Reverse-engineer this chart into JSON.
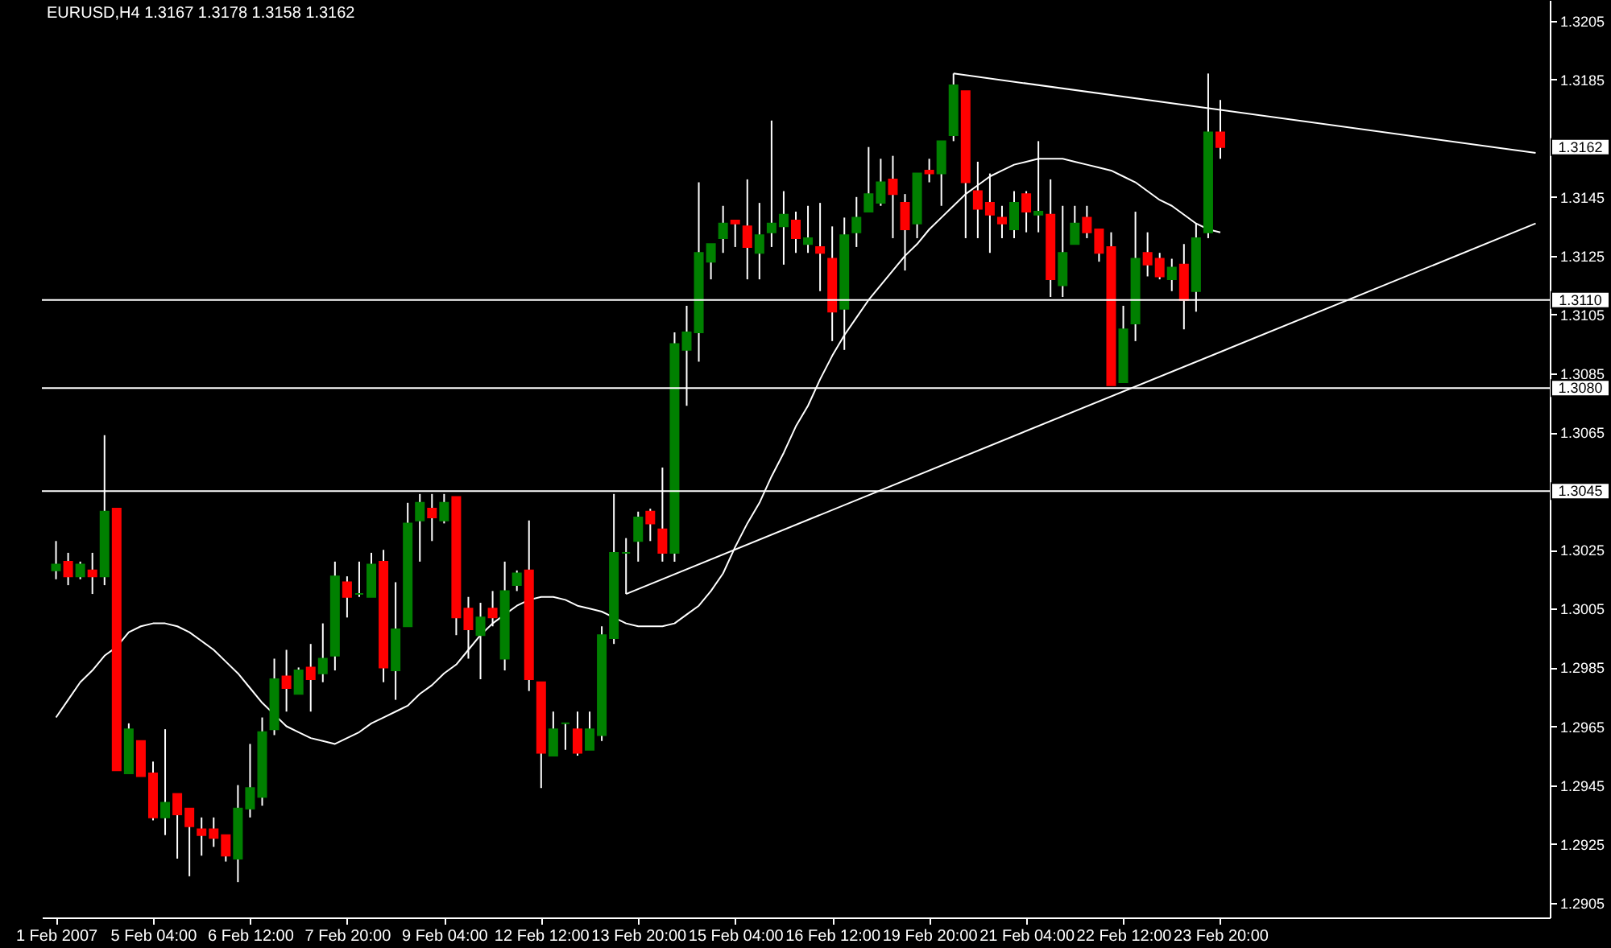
{
  "chart_data": {
    "type": "candlestick",
    "title": "EURUSD,H4 1.3167 1.3178 1.3158 1.3162",
    "categories": [
      "1 Feb 2007",
      null,
      null,
      null,
      null,
      null,
      null,
      null,
      "5 Feb 04:00",
      null,
      null,
      null,
      null,
      null,
      null,
      null,
      "6 Feb 12:00",
      null,
      null,
      null,
      null,
      null,
      null,
      null,
      "7 Feb 20:00",
      null,
      null,
      null,
      null,
      null,
      null,
      null,
      "9 Feb 04:00",
      null,
      null,
      null,
      null,
      null,
      null,
      null,
      "12 Feb 12:00",
      null,
      null,
      null,
      null,
      null,
      null,
      null,
      "13 Feb 20:00",
      null,
      null,
      null,
      null,
      null,
      null,
      null,
      "15 Feb 04:00",
      null,
      null,
      null,
      null,
      null,
      null,
      null,
      "16 Feb 12:00",
      null,
      null,
      null,
      null,
      null,
      null,
      null,
      "19 Feb 20:00",
      null,
      null,
      null,
      null,
      null,
      null,
      null,
      "21 Feb 04:00",
      null,
      null,
      null,
      null,
      null,
      null,
      null,
      "22 Feb 12:00",
      null,
      null,
      null,
      null,
      null,
      null,
      null,
      "23 Feb 20:00",
      null,
      null,
      null,
      null,
      null,
      null,
      null,
      null,
      null,
      null,
      null,
      null,
      null,
      null,
      null,
      null,
      null,
      null,
      null,
      null,
      null,
      null,
      null,
      null,
      null,
      null
    ],
    "ohlc": [
      [
        1.3018,
        1.3028,
        1.3015,
        1.302
      ],
      [
        1.3021,
        1.3024,
        1.3013,
        1.3016
      ],
      [
        1.3016,
        1.3021,
        1.3015,
        1.302
      ],
      [
        1.3018,
        1.3024,
        1.301,
        1.3016
      ],
      [
        1.3016,
        1.3064,
        1.3013,
        1.3038
      ],
      [
        1.3039,
        1.3039,
        1.295,
        1.295
      ],
      [
        1.2949,
        1.2966,
        1.2949,
        1.2964
      ],
      [
        1.296,
        1.296,
        1.2948,
        1.2948
      ],
      [
        1.2949,
        1.2953,
        1.2933,
        1.2934
      ],
      [
        1.2934,
        1.2964,
        1.2928,
        1.2939
      ],
      [
        1.2942,
        1.2942,
        1.292,
        1.2935
      ],
      [
        1.2937,
        1.2937,
        1.2914,
        1.2931
      ],
      [
        1.293,
        1.2934,
        1.2921,
        1.2928
      ],
      [
        1.293,
        1.2934,
        1.2924,
        1.2927
      ],
      [
        1.2928,
        1.2928,
        1.2919,
        1.2921
      ],
      [
        1.292,
        1.2945,
        1.2912,
        1.2937
      ],
      [
        1.2937,
        1.2959,
        1.2934,
        1.2944
      ],
      [
        1.2941,
        1.2968,
        1.2938,
        1.2963
      ],
      [
        1.2964,
        1.2988,
        1.2962,
        1.2981
      ],
      [
        1.2982,
        1.2991,
        1.297,
        1.2978
      ],
      [
        1.2976,
        1.2985,
        1.2976,
        1.2984
      ],
      [
        1.2985,
        1.2993,
        1.297,
        1.2981
      ],
      [
        1.2983,
        1.3,
        1.298,
        1.2988
      ],
      [
        1.2989,
        1.3021,
        1.2984,
        1.3016
      ],
      [
        1.3014,
        1.3016,
        1.3002,
        1.3009
      ],
      [
        1.301,
        1.3021,
        1.3009,
        1.301
      ],
      [
        1.3009,
        1.3024,
        1.3009,
        1.302
      ],
      [
        1.3021,
        1.3025,
        1.298,
        1.2985
      ],
      [
        1.2984,
        1.3014,
        1.2974,
        1.2998
      ],
      [
        1.2999,
        1.3041,
        1.2999,
        1.3034
      ],
      [
        1.3035,
        1.3044,
        1.3021,
        1.3041
      ],
      [
        1.3039,
        1.3044,
        1.3028,
        1.3036
      ],
      [
        1.3035,
        1.3044,
        1.3034,
        1.3041
      ],
      [
        1.3043,
        1.3043,
        1.2996,
        1.3002
      ],
      [
        1.3005,
        1.3009,
        1.2988,
        1.2998
      ],
      [
        1.2996,
        1.3007,
        1.2981,
        1.3002
      ],
      [
        1.3005,
        1.3011,
        1.2999,
        1.3002
      ],
      [
        1.2988,
        1.3021,
        1.2984,
        1.3011
      ],
      [
        1.3013,
        1.3018,
        1.3011,
        1.3017
      ],
      [
        1.3018,
        1.3035,
        1.2977,
        1.2981
      ],
      [
        1.298,
        1.298,
        1.2944,
        1.2956
      ],
      [
        1.2955,
        1.297,
        1.2955,
        1.2964
      ],
      [
        1.2966,
        1.2966,
        1.2957,
        1.2966
      ],
      [
        1.2964,
        1.297,
        1.2955,
        1.2956
      ],
      [
        1.2957,
        1.297,
        1.2957,
        1.2964
      ],
      [
        1.2962,
        1.2999,
        1.296,
        1.2996
      ],
      [
        1.2995,
        1.3044,
        1.2993,
        1.3024
      ],
      [
        1.3024,
        1.3029,
        1.301,
        1.3024
      ],
      [
        1.3028,
        1.3038,
        1.3021,
        1.3036
      ],
      [
        1.3038,
        1.3039,
        1.3028,
        1.3034
      ],
      [
        1.3032,
        1.3053,
        1.3021,
        1.3024
      ],
      [
        1.3024,
        1.3099,
        1.3021,
        1.3095
      ],
      [
        1.3093,
        1.3108,
        1.3074,
        1.3099
      ],
      [
        1.3099,
        1.315,
        1.3089,
        1.3126
      ],
      [
        1.3123,
        1.3129,
        1.3117,
        1.3129
      ],
      [
        1.3131,
        1.3142,
        1.3126,
        1.3136
      ],
      [
        1.3137,
        1.3137,
        1.3128,
        1.3136
      ],
      [
        1.3135,
        1.3151,
        1.3117,
        1.3128
      ],
      [
        1.3126,
        1.3143,
        1.3117,
        1.3132
      ],
      [
        1.3133,
        1.3171,
        1.3128,
        1.3136
      ],
      [
        1.3135,
        1.3147,
        1.3122,
        1.3139
      ],
      [
        1.3137,
        1.314,
        1.3126,
        1.3131
      ],
      [
        1.3129,
        1.3142,
        1.3126,
        1.3131
      ],
      [
        1.3128,
        1.3143,
        1.3113,
        1.3126
      ],
      [
        1.3124,
        1.3135,
        1.3096,
        1.3106
      ],
      [
        1.3107,
        1.3138,
        1.3093,
        1.3132
      ],
      [
        1.3133,
        1.3145,
        1.3128,
        1.3138
      ],
      [
        1.314,
        1.3162,
        1.314,
        1.3146
      ],
      [
        1.3143,
        1.3158,
        1.3142,
        1.315
      ],
      [
        1.3151,
        1.3159,
        1.3131,
        1.3146
      ],
      [
        1.3143,
        1.3146,
        1.312,
        1.3134
      ],
      [
        1.3136,
        1.3153,
        1.3131,
        1.3153
      ],
      [
        1.3154,
        1.3158,
        1.315,
        1.3153
      ],
      [
        1.3153,
        1.3164,
        1.3142,
        1.3164
      ],
      [
        1.3166,
        1.3187,
        1.3164,
        1.3183
      ],
      [
        1.3181,
        1.3181,
        1.3131,
        1.315
      ],
      [
        1.3147,
        1.3157,
        1.3131,
        1.3141
      ],
      [
        1.3143,
        1.3153,
        1.3126,
        1.3139
      ],
      [
        1.3138,
        1.3142,
        1.3131,
        1.3136
      ],
      [
        1.3134,
        1.3147,
        1.3131,
        1.3143
      ],
      [
        1.3146,
        1.3147,
        1.3133,
        1.314
      ],
      [
        1.3139,
        1.3164,
        1.3133,
        1.314
      ],
      [
        1.3139,
        1.3151,
        1.3111,
        1.3117
      ],
      [
        1.3115,
        1.3142,
        1.3111,
        1.3126
      ],
      [
        1.3129,
        1.3142,
        1.3129,
        1.3136
      ],
      [
        1.3138,
        1.3142,
        1.3131,
        1.3133
      ],
      [
        1.3134,
        1.3134,
        1.3123,
        1.3126
      ],
      [
        1.3128,
        1.3133,
        1.3081,
        1.3081
      ],
      [
        1.3082,
        1.3108,
        1.3082,
        1.31
      ],
      [
        1.3102,
        1.314,
        1.3096,
        1.3124
      ],
      [
        1.3126,
        1.3133,
        1.3118,
        1.3122
      ],
      [
        1.3124,
        1.3126,
        1.3117,
        1.3118
      ],
      [
        1.3117,
        1.3124,
        1.3113,
        1.3121
      ],
      [
        1.3122,
        1.3129,
        1.31,
        1.311
      ],
      [
        1.3113,
        1.3136,
        1.3106,
        1.3131
      ],
      [
        1.3133,
        1.3187,
        1.3131,
        1.3167
      ],
      [
        1.3167,
        1.3178,
        1.3158,
        1.3162
      ],
      null,
      null,
      null,
      null,
      null,
      null,
      null,
      null,
      null,
      null,
      null,
      null,
      null,
      null,
      null,
      null,
      null,
      null,
      null,
      null,
      null,
      null,
      null,
      null,
      null,
      null
    ],
    "colors": [
      "#008000",
      "#ff0000",
      "#008000",
      "#ff0000",
      "#008000",
      "#ff0000",
      "#008000",
      "#ff0000",
      "#ff0000",
      "#008000",
      "#ff0000",
      "#ff0000",
      "#ff0000",
      "#ff0000",
      "#ff0000",
      "#008000",
      "#008000",
      "#008000",
      "#008000",
      "#ff0000",
      "#008000",
      "#ff0000",
      "#008000",
      "#008000",
      "#ff0000",
      "#008000",
      "#008000",
      "#ff0000",
      "#008000",
      "#008000",
      "#008000",
      "#ff0000",
      "#008000",
      "#ff0000",
      "#ff0000",
      "#008000",
      "#ff0000",
      "#008000",
      "#008000",
      "#ff0000",
      "#ff0000",
      "#008000",
      "#008000",
      "#ff0000",
      "#008000",
      "#008000",
      "#008000",
      "#008000",
      "#008000",
      "#ff0000",
      "#ff0000",
      "#008000",
      "#008000",
      "#008000",
      "#008000",
      "#008000",
      "#ff0000",
      "#ff0000",
      "#008000",
      "#008000",
      "#008000",
      "#ff0000",
      "#008000",
      "#ff0000",
      "#ff0000",
      "#008000",
      "#008000",
      "#008000",
      "#008000",
      "#ff0000",
      "#ff0000",
      "#008000",
      "#ff0000",
      "#008000",
      "#008000",
      "#ff0000",
      "#ff0000",
      "#ff0000",
      "#ff0000",
      "#008000",
      "#ff0000",
      "#008000",
      "#ff0000",
      "#008000",
      "#008000",
      "#ff0000",
      "#ff0000",
      "#ff0000",
      "#008000",
      "#008000",
      "#ff0000",
      "#ff0000",
      "#008000",
      "#ff0000",
      "#008000",
      "#008000",
      "#ff0000",
      null,
      null,
      null,
      null,
      null,
      null,
      null,
      null,
      null,
      null,
      null,
      null,
      null,
      null,
      null,
      null,
      null,
      null,
      null,
      null,
      null,
      null,
      null,
      null,
      null,
      null
    ],
    "series": [
      {
        "type": "line",
        "color": "#ffffff",
        "values": [
          1.2968,
          1.2974,
          1.298,
          1.2984,
          1.2989,
          1.2992,
          1.2997,
          1.2999,
          1.3,
          1.3,
          1.2999,
          1.2997,
          1.2994,
          1.2991,
          1.2987,
          1.2983,
          1.2978,
          1.2973,
          1.2969,
          1.2965,
          1.2963,
          1.2961,
          1.296,
          1.2959,
          1.2961,
          1.2963,
          1.2966,
          1.2968,
          1.297,
          1.2972,
          1.2976,
          1.2979,
          1.2983,
          1.2986,
          1.2991,
          1.2996,
          1.3,
          1.3003,
          1.3006,
          1.3008,
          1.3009,
          1.3009,
          1.3008,
          1.3006,
          1.3005,
          1.3004,
          1.3002,
          1.3,
          1.2999,
          1.2999,
          1.2999,
          1.3,
          1.3003,
          1.3006,
          1.3011,
          1.3017,
          1.3026,
          1.3034,
          1.3041,
          1.305,
          1.3058,
          1.3067,
          1.3074,
          1.3083,
          1.3091,
          1.3098,
          1.3104,
          1.311,
          1.3115,
          1.312,
          1.3125,
          1.3129,
          1.3134,
          1.3138,
          1.3142,
          1.3146,
          1.3149,
          1.3152,
          1.3154,
          1.3156,
          1.3157,
          1.3158,
          1.3158,
          1.3158,
          1.3157,
          1.3156,
          1.3155,
          1.3154,
          1.3152,
          1.315,
          1.3147,
          1.3144,
          1.3142,
          1.3139,
          1.3136,
          1.3134,
          1.3133,
          null,
          null,
          null,
          null,
          null,
          null,
          null,
          null,
          null,
          null,
          null,
          null,
          null,
          null,
          null,
          null,
          null,
          null,
          null,
          null,
          null,
          null,
          null,
          null,
          null,
          null
        ]
      },
      {
        "type": "line",
        "color": "#ffffff",
        "values": [
          null,
          null,
          null,
          null,
          null,
          null,
          null,
          null,
          null,
          null,
          null,
          null,
          null,
          null,
          null,
          null,
          null,
          null,
          null,
          null,
          null,
          null,
          null,
          null,
          null,
          null,
          null,
          null,
          null,
          null,
          null,
          null,
          null,
          null,
          null,
          null,
          null,
          null,
          null,
          null,
          null,
          null,
          null,
          null,
          null,
          null,
          null,
          null,
          null,
          null,
          null,
          null,
          null,
          null,
          null,
          null,
          null,
          null,
          null,
          null,
          null,
          null,
          null,
          null,
          null,
          null,
          null,
          null,
          null,
          null,
          null,
          null,
          null,
          null,
          1.3187,
          null,
          null,
          null,
          null,
          null,
          null,
          null,
          null,
          null,
          null,
          null,
          null,
          null,
          null,
          null,
          null,
          null,
          null,
          null,
          null,
          null,
          null,
          null,
          null,
          null,
          null,
          null,
          null,
          null,
          null,
          null,
          null,
          null,
          null,
          null,
          null,
          null,
          null,
          null,
          null,
          null,
          null,
          null,
          null,
          null,
          null,
          null,
          1.316
        ]
      },
      {
        "type": "line",
        "color": "#ffffff",
        "values": [
          null,
          null,
          null,
          null,
          null,
          null,
          null,
          null,
          null,
          null,
          null,
          null,
          null,
          null,
          null,
          null,
          null,
          null,
          null,
          null,
          null,
          null,
          null,
          null,
          null,
          null,
          null,
          null,
          null,
          null,
          null,
          null,
          null,
          null,
          null,
          null,
          null,
          null,
          null,
          null,
          null,
          null,
          null,
          null,
          null,
          null,
          null,
          1.301,
          null,
          null,
          null,
          null,
          null,
          null,
          null,
          null,
          null,
          null,
          null,
          null,
          null,
          null,
          null,
          null,
          null,
          null,
          null,
          null,
          null,
          null,
          null,
          null,
          null,
          null,
          null,
          null,
          null,
          null,
          null,
          null,
          null,
          null,
          null,
          null,
          null,
          null,
          null,
          null,
          null,
          null,
          null,
          null,
          null,
          null,
          null,
          null,
          null,
          null,
          null,
          null,
          null,
          null,
          null,
          null,
          null,
          null,
          null,
          null,
          null,
          null,
          null,
          null,
          null,
          null,
          null,
          null,
          null,
          null,
          null,
          null,
          null,
          null,
          1.3136
        ]
      }
    ],
    "ylim": [
      1.29,
      1.3212
    ],
    "yticks": [
      1.2905,
      1.2925,
      1.2945,
      1.2965,
      1.2985,
      1.3005,
      1.3025,
      1.3045,
      1.3065,
      1.3085,
      1.3105,
      1.3125,
      1.3145,
      {
        "value": 1.3165,
        "label": null
      },
      1.3185,
      1.3205
    ],
    "ref_lines": [
      {
        "axis": "y",
        "value": 1.311,
        "label": "1.3110",
        "color": "#ffffff"
      },
      {
        "axis": "y",
        "value": 1.308,
        "label": "1.3080",
        "color": "#ffffff"
      },
      {
        "axis": "y",
        "value": 1.3045,
        "label": "1.3045",
        "color": "#ffffff"
      }
    ],
    "annotations": [
      "1.3162"
    ],
    "grid": false
  }
}
